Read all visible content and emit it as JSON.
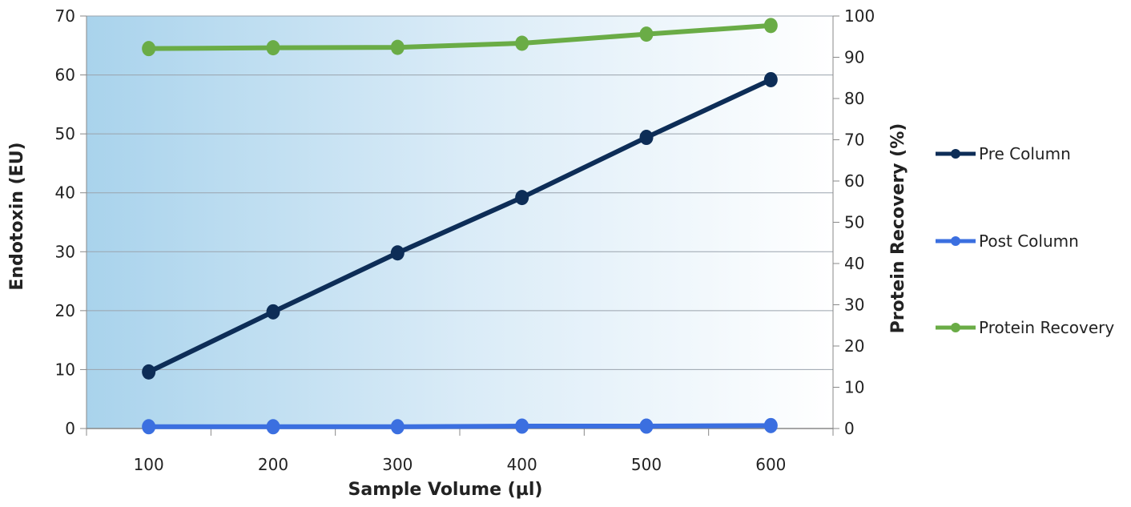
{
  "chart_data": {
    "type": "line",
    "title": "",
    "xlabel": "Sample Volume (µl)",
    "ylabel": "Endotoxin (EU)",
    "y2label": "Protein Recovery (%)",
    "x": [
      100,
      200,
      300,
      400,
      500,
      600
    ],
    "x_tick_labels": [
      "100",
      "200",
      "300",
      "400",
      "500",
      "600"
    ],
    "ylim": [
      0,
      70
    ],
    "y_ticks": [
      0,
      10,
      20,
      30,
      40,
      50,
      60,
      70
    ],
    "y2lim": [
      0,
      100
    ],
    "y2_ticks": [
      0,
      10,
      20,
      30,
      40,
      50,
      60,
      70,
      80,
      90,
      100
    ],
    "grid": true,
    "legend_position": "right",
    "background": "gradient-blue-to-white",
    "series": [
      {
        "name": "Pre Column",
        "axis": "left",
        "color": "#0d2d57",
        "values": [
          9.6,
          19.8,
          29.8,
          39.2,
          49.4,
          59.2
        ]
      },
      {
        "name": "Post Column",
        "axis": "left",
        "color": "#3b6fe0",
        "values": [
          0.3,
          0.3,
          0.3,
          0.4,
          0.4,
          0.5
        ]
      },
      {
        "name": "Protein Recovery",
        "axis": "right",
        "color": "#6aac46",
        "values": [
          92.1,
          92.3,
          92.4,
          93.4,
          95.6,
          97.7
        ]
      }
    ]
  }
}
